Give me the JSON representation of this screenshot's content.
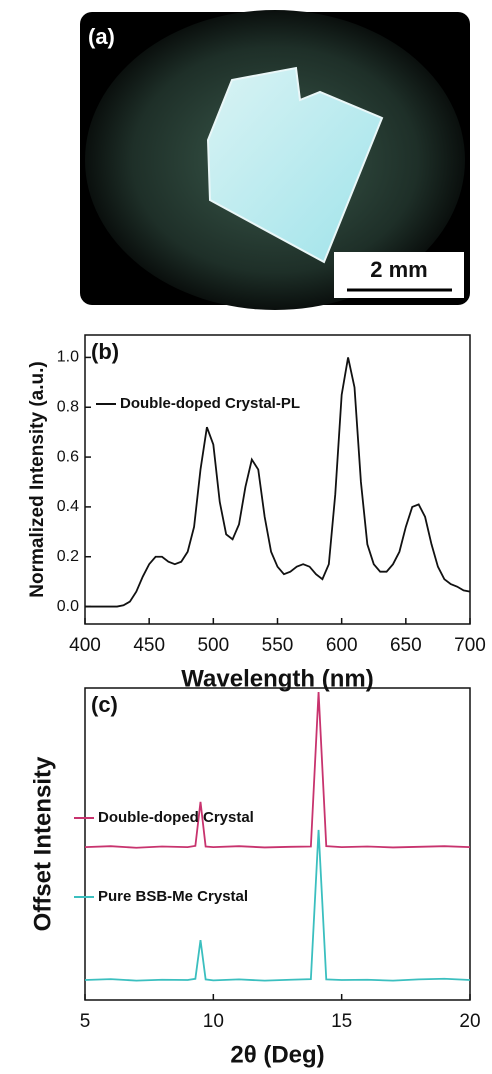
{
  "panel_a": {
    "label": "(a)",
    "scale_bar": "2 mm"
  },
  "chart_data": [
    {
      "type": "line",
      "panel": "(b)",
      "x_label": "Wavelength (nm)",
      "y_label": "Normalized Intensity (a.u.)",
      "x": [
        400,
        405,
        410,
        415,
        420,
        425,
        430,
        435,
        440,
        445,
        450,
        455,
        460,
        465,
        470,
        475,
        480,
        485,
        490,
        495,
        500,
        505,
        510,
        515,
        520,
        525,
        530,
        535,
        540,
        545,
        550,
        555,
        560,
        565,
        570,
        575,
        580,
        585,
        590,
        595,
        600,
        605,
        610,
        615,
        620,
        625,
        630,
        635,
        640,
        645,
        650,
        655,
        660,
        665,
        670,
        675,
        680,
        685,
        690,
        695,
        700
      ],
      "series": [
        {
          "name": "Double-doped Crystal-PL",
          "color": "#111111",
          "values": [
            0,
            0,
            0,
            0,
            0,
            0,
            0.005,
            0.02,
            0.06,
            0.12,
            0.17,
            0.2,
            0.2,
            0.18,
            0.17,
            0.18,
            0.22,
            0.32,
            0.55,
            0.72,
            0.65,
            0.42,
            0.29,
            0.27,
            0.33,
            0.48,
            0.59,
            0.55,
            0.36,
            0.22,
            0.16,
            0.13,
            0.14,
            0.16,
            0.17,
            0.16,
            0.13,
            0.11,
            0.17,
            0.45,
            0.85,
            1.0,
            0.88,
            0.5,
            0.25,
            0.17,
            0.14,
            0.14,
            0.17,
            0.22,
            0.32,
            0.4,
            0.41,
            0.36,
            0.25,
            0.16,
            0.11,
            0.09,
            0.08,
            0.065,
            0.06
          ]
        }
      ],
      "xlim": [
        400,
        700
      ],
      "ylim": [
        -0.07,
        1.09
      ],
      "xticks": [
        400,
        450,
        500,
        550,
        600,
        650,
        700
      ],
      "yticks": [
        {
          "value": 0,
          "label": "0.0"
        },
        0.2,
        0.4,
        0.6,
        0.8,
        {
          "value": 1,
          "label": "1.0"
        }
      ]
    },
    {
      "type": "line",
      "panel": "(c)",
      "x_label": "2θ (Deg)",
      "y_label": "Offset Intensity",
      "x": [
        5,
        6,
        7,
        8,
        9,
        9.3,
        9.5,
        9.7,
        10,
        11,
        12,
        13,
        13.8,
        14.1,
        14.4,
        15,
        16,
        17,
        18,
        19,
        20
      ],
      "series": [
        {
          "name": "Double-doped Crystal",
          "color": "#c8336e",
          "values": [
            49,
            49.3,
            48.8,
            49.2,
            49,
            49.4,
            63.5,
            49.2,
            49,
            49.3,
            48.9,
            49.1,
            49.2,
            98.7,
            49.3,
            49,
            49.2,
            48.9,
            49.1,
            49.3,
            49
          ]
        },
        {
          "name": "Pure BSB-Me Crystal",
          "color": "#3bbfbf",
          "values": [
            6.4,
            6.7,
            6.2,
            6.5,
            6.4,
            6.8,
            19.2,
            6.6,
            6.3,
            6.6,
            6.2,
            6.5,
            6.7,
            54.5,
            6.6,
            6.4,
            6.5,
            6.2,
            6.6,
            6.8,
            6.4
          ]
        }
      ],
      "xlim": [
        5,
        20
      ],
      "ylim": [
        0,
        100
      ],
      "xticks": [
        5,
        10,
        15,
        20
      ]
    }
  ]
}
